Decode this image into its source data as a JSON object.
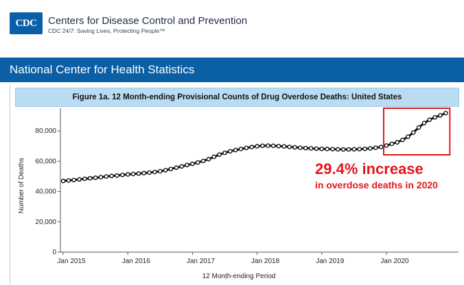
{
  "header": {
    "logo_text": "CDC",
    "title": "Centers for Disease Control and Prevention",
    "tagline": "CDC 24/7: Saving Lives, Protecting People™"
  },
  "banner": {
    "title": "National Center for Health Statistics"
  },
  "annotation": {
    "headline": "29.4% increase",
    "subline": "in overdose deaths in 2020",
    "color": "#e3151a"
  },
  "chart_data": {
    "type": "line",
    "title": "Figure 1a. 12 Month-ending Provisional Counts of Drug Overdose Deaths: United States",
    "xlabel": "12 Month-ending Period",
    "ylabel": "Number of Deaths",
    "ylim": [
      0,
      95000
    ],
    "yticks": [
      0,
      20000,
      40000,
      60000,
      80000
    ],
    "ytick_labels": [
      "0",
      "20,000",
      "40,000",
      "60,000",
      "80,000"
    ],
    "xtick_labels": [
      "Jan 2015",
      "Jan 2016",
      "Jan 2017",
      "Jan 2018",
      "Jan 2019",
      "Jan 2020"
    ],
    "grid": false,
    "line_color": "#111111",
    "highlight_color": "#e3151a",
    "highlight_range": [
      "Jan 2020",
      "Dec 2020"
    ],
    "series": [
      {
        "x_start": "Jan 2015",
        "x_end": "Dec 2020",
        "frequency": "monthly",
        "values": [
          47000,
          47300,
          47600,
          48000,
          48400,
          48800,
          49100,
          49500,
          49900,
          50300,
          50600,
          51000,
          51300,
          51600,
          51900,
          52200,
          52500,
          52900,
          53400,
          54100,
          54900,
          55800,
          56600,
          57500,
          58300,
          59200,
          60200,
          61400,
          62900,
          64400,
          65600,
          66600,
          67400,
          68100,
          68800,
          69400,
          69900,
          70200,
          70300,
          70200,
          70000,
          69800,
          69500,
          69200,
          68900,
          68700,
          68500,
          68300,
          68200,
          68100,
          68000,
          67900,
          67800,
          67800,
          67900,
          68000,
          68200,
          68500,
          68900,
          69400,
          70400,
          71500,
          72500,
          74100,
          76200,
          79000,
          82300,
          85200,
          87400,
          89000,
          90300,
          91800
        ]
      }
    ]
  }
}
